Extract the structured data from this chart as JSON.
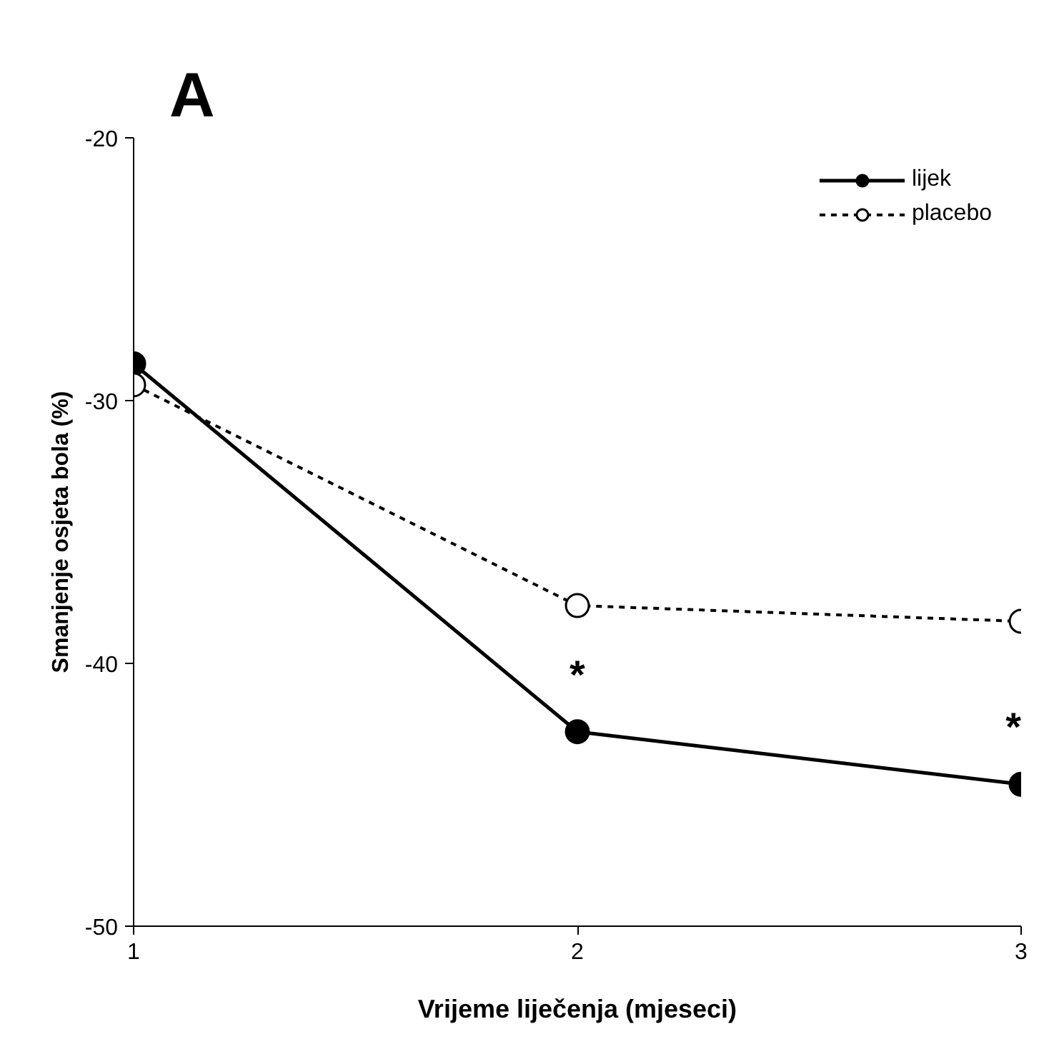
{
  "chart_data": {
    "type": "line",
    "title": "A",
    "xlabel": "Vrijeme liječenja (mjeseci)",
    "ylabel": "Smanjenje osjeta bola (%)",
    "x": [
      1,
      2,
      3
    ],
    "series": [
      {
        "name": "lijek",
        "color": "#000000",
        "values": [
          -28.6,
          -42.6,
          -44.6
        ],
        "line_style": "solid"
      },
      {
        "name": "placebo",
        "color": "#000000",
        "values": [
          -29.4,
          -37.8,
          -38.4
        ],
        "line_style": "dashed"
      }
    ],
    "xlim": [
      1,
      3
    ],
    "xticks": [
      1,
      2,
      3
    ],
    "ylim": [
      -50,
      -20
    ],
    "yticks": [
      -50,
      -40,
      -30,
      -20
    ],
    "annotations": [
      {
        "text": "*",
        "x": 2,
        "y": -42.6
      },
      {
        "text": "*",
        "x": 3,
        "y": -44.6
      }
    ],
    "marker": "circle",
    "grid": false,
    "legend": "top right"
  }
}
